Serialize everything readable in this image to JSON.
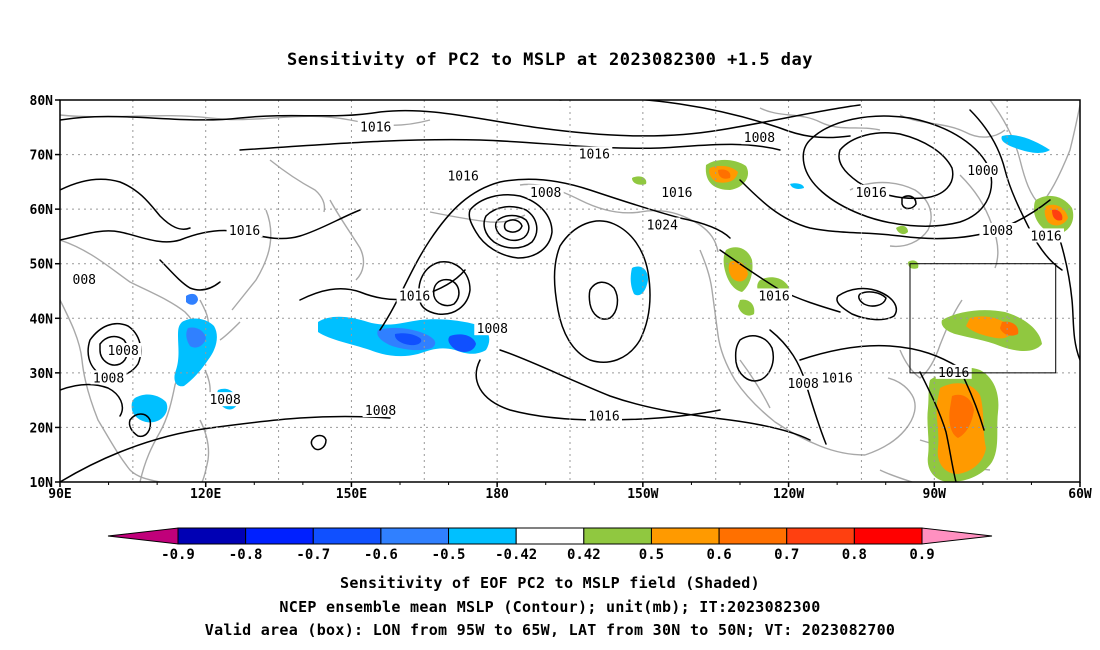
{
  "title": "Sensitivity of PC2 to MSLP at 2023082300 +1.5 day",
  "map": {
    "lon_range": [
      90,
      300
    ],
    "lat_range": [
      10,
      80
    ],
    "lat_ticks": [
      {
        "value": 80,
        "label": "80N"
      },
      {
        "value": 70,
        "label": "70N"
      },
      {
        "value": 60,
        "label": "60N"
      },
      {
        "value": 50,
        "label": "50N"
      },
      {
        "value": 40,
        "label": "40N"
      },
      {
        "value": 30,
        "label": "30N"
      },
      {
        "value": 20,
        "label": "20N"
      },
      {
        "value": 10,
        "label": "10N"
      }
    ],
    "lon_ticks": [
      {
        "value": 90,
        "label": "90E"
      },
      {
        "value": 120,
        "label": "120E"
      },
      {
        "value": 150,
        "label": "150E"
      },
      {
        "value": 180,
        "label": "180"
      },
      {
        "value": 210,
        "label": "150W"
      },
      {
        "value": 240,
        "label": "120W"
      },
      {
        "value": 270,
        "label": "90W"
      },
      {
        "value": 300,
        "label": "60W"
      }
    ],
    "valid_box": {
      "lon": [
        265,
        295
      ],
      "lat": [
        30,
        50
      ]
    },
    "contour_labels": [
      {
        "text": "1016",
        "lon": 155,
        "lat": 75
      },
      {
        "text": "1008",
        "lon": 234,
        "lat": 73
      },
      {
        "text": "1016",
        "lon": 200,
        "lat": 70
      },
      {
        "text": "1000",
        "lon": 280,
        "lat": 67
      },
      {
        "text": "1016",
        "lon": 173,
        "lat": 66
      },
      {
        "text": "1008",
        "lon": 190,
        "lat": 63
      },
      {
        "text": "1016",
        "lon": 217,
        "lat": 63
      },
      {
        "text": "1016",
        "lon": 257,
        "lat": 63
      },
      {
        "text": "1008",
        "lon": 283,
        "lat": 56
      },
      {
        "text": "1016",
        "lon": 293,
        "lat": 55
      },
      {
        "text": "1024",
        "lon": 214,
        "lat": 57
      },
      {
        "text": "1016",
        "lon": 128,
        "lat": 56
      },
      {
        "text": "008",
        "lon": 95,
        "lat": 47
      },
      {
        "text": "1016",
        "lon": 163,
        "lat": 44
      },
      {
        "text": "1008",
        "lon": 179,
        "lat": 38
      },
      {
        "text": "1016",
        "lon": 237,
        "lat": 44
      },
      {
        "text": "1008",
        "lon": 103,
        "lat": 34
      },
      {
        "text": "1008",
        "lon": 100,
        "lat": 29
      },
      {
        "text": "1016",
        "lon": 250,
        "lat": 29
      },
      {
        "text": "1008",
        "lon": 243,
        "lat": 28
      },
      {
        "text": "1016",
        "lon": 274,
        "lat": 30
      },
      {
        "text": "1008",
        "lon": 124,
        "lat": 25
      },
      {
        "text": "1008",
        "lon": 156,
        "lat": 23
      },
      {
        "text": "1016",
        "lon": 202,
        "lat": 22
      }
    ]
  },
  "colorbar": {
    "labels": [
      "-0.9",
      "-0.8",
      "-0.7",
      "-0.6",
      "-0.5",
      "-0.42",
      "0.42",
      "0.5",
      "0.6",
      "0.7",
      "0.8",
      "0.9"
    ],
    "colors": {
      "lt_m09": "#c0007a",
      "m09_m08": "#0000b4",
      "m08_m07": "#0020ff",
      "m07_m06": "#1050ff",
      "m06_m05": "#3080ff",
      "m05_m042": "#00c0ff",
      "m042_042": "#ffffff",
      "042_05": "#90c840",
      "05_06": "#ff9a00",
      "06_07": "#ff7000",
      "07_08": "#ff4010",
      "08_09": "#ff0000",
      "gt_09": "#ff90c0"
    }
  },
  "captions": {
    "line1": "Sensitivity of EOF PC2 to MSLP field (Shaded)",
    "line2": "NCEP ensemble mean MSLP (Contour); unit(mb); IT:2023082300",
    "line3": "Valid area (box): LON from 95W to 65W, LAT from 30N to 50N; VT: 2023082700"
  }
}
